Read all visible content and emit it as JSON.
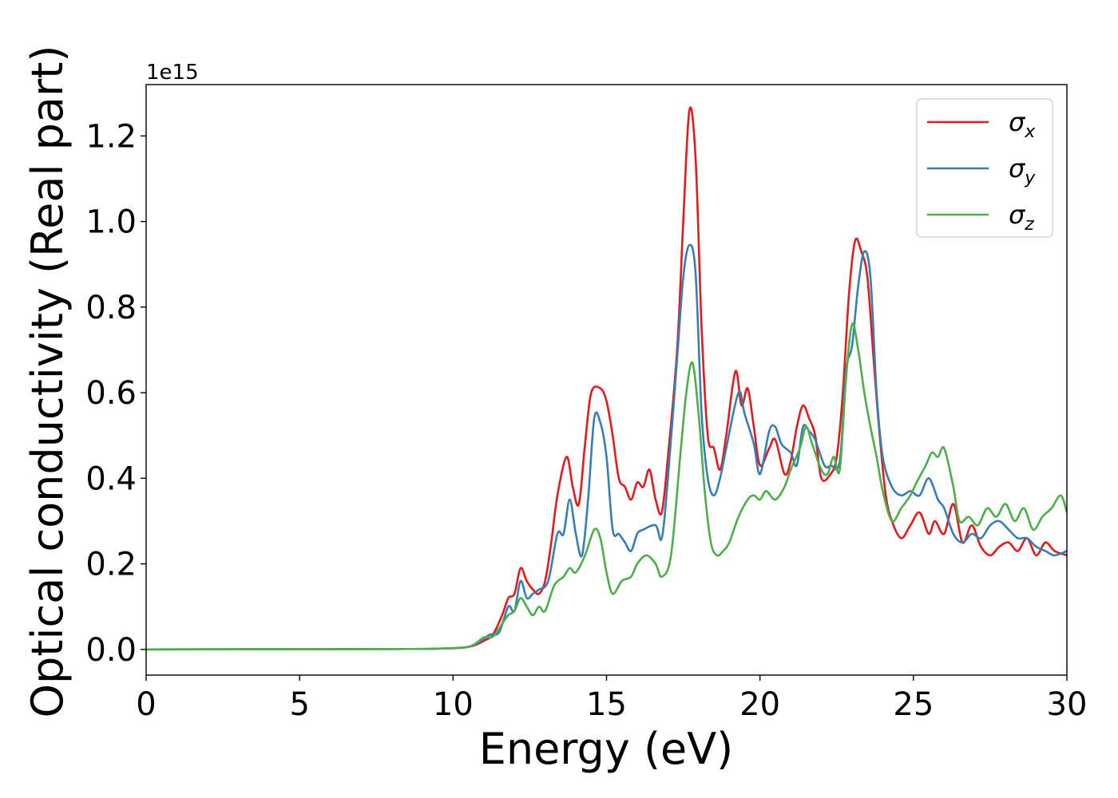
{
  "chart_data": {
    "type": "line",
    "title": "",
    "xlabel": "Energy (eV)",
    "ylabel": "Optical conductivity (Real part)",
    "y_offset_label": "1e15",
    "xlim": [
      0,
      30
    ],
    "ylim": [
      -0.06,
      1.32
    ],
    "x_ticks": [
      0,
      5,
      10,
      15,
      20,
      25,
      30
    ],
    "y_ticks": [
      0.0,
      0.2,
      0.4,
      0.6,
      0.8,
      1.0,
      1.2
    ],
    "y_tick_labels": [
      "0.0",
      "0.2",
      "0.4",
      "0.6",
      "0.8",
      "1.0",
      "1.2"
    ],
    "grid": false,
    "legend_position": "top-right",
    "series": [
      {
        "name": "σx",
        "symbol": "σ",
        "subscript": "x",
        "color": "#e41a1c",
        "points": [
          [
            0,
            0
          ],
          [
            8,
            0.001
          ],
          [
            9.5,
            0.002
          ],
          [
            10.5,
            0.006
          ],
          [
            11,
            0.02
          ],
          [
            11.3,
            0.035
          ],
          [
            11.6,
            0.08
          ],
          [
            11.8,
            0.12
          ],
          [
            12.0,
            0.13
          ],
          [
            12.2,
            0.19
          ],
          [
            12.4,
            0.16
          ],
          [
            12.6,
            0.14
          ],
          [
            12.8,
            0.13
          ],
          [
            13.0,
            0.16
          ],
          [
            13.2,
            0.25
          ],
          [
            13.4,
            0.36
          ],
          [
            13.7,
            0.45
          ],
          [
            13.9,
            0.38
          ],
          [
            14.1,
            0.34
          ],
          [
            14.3,
            0.48
          ],
          [
            14.5,
            0.6
          ],
          [
            14.8,
            0.61
          ],
          [
            15.0,
            0.58
          ],
          [
            15.2,
            0.5
          ],
          [
            15.4,
            0.4
          ],
          [
            15.6,
            0.38
          ],
          [
            15.8,
            0.35
          ],
          [
            16.0,
            0.39
          ],
          [
            16.2,
            0.38
          ],
          [
            16.4,
            0.42
          ],
          [
            16.6,
            0.35
          ],
          [
            16.8,
            0.32
          ],
          [
            17.0,
            0.45
          ],
          [
            17.3,
            0.7
          ],
          [
            17.5,
            1.0
          ],
          [
            17.7,
            1.26
          ],
          [
            17.9,
            1.15
          ],
          [
            18.1,
            0.75
          ],
          [
            18.3,
            0.5
          ],
          [
            18.5,
            0.47
          ],
          [
            18.7,
            0.42
          ],
          [
            18.9,
            0.5
          ],
          [
            19.2,
            0.65
          ],
          [
            19.4,
            0.57
          ],
          [
            19.6,
            0.61
          ],
          [
            19.8,
            0.52
          ],
          [
            20.0,
            0.43
          ],
          [
            20.3,
            0.47
          ],
          [
            20.5,
            0.49
          ],
          [
            20.8,
            0.41
          ],
          [
            21.0,
            0.44
          ],
          [
            21.2,
            0.52
          ],
          [
            21.4,
            0.57
          ],
          [
            21.6,
            0.54
          ],
          [
            21.8,
            0.5
          ],
          [
            22.0,
            0.4
          ],
          [
            22.3,
            0.41
          ],
          [
            22.5,
            0.45
          ],
          [
            22.7,
            0.6
          ],
          [
            22.9,
            0.83
          ],
          [
            23.1,
            0.955
          ],
          [
            23.3,
            0.93
          ],
          [
            23.5,
            0.87
          ],
          [
            23.7,
            0.68
          ],
          [
            23.9,
            0.5
          ],
          [
            24.1,
            0.36
          ],
          [
            24.3,
            0.3
          ],
          [
            24.6,
            0.26
          ],
          [
            24.9,
            0.29
          ],
          [
            25.2,
            0.32
          ],
          [
            25.5,
            0.27
          ],
          [
            25.7,
            0.3
          ],
          [
            26.0,
            0.27
          ],
          [
            26.3,
            0.34
          ],
          [
            26.6,
            0.25
          ],
          [
            26.9,
            0.29
          ],
          [
            27.2,
            0.24
          ],
          [
            27.5,
            0.22
          ],
          [
            27.8,
            0.24
          ],
          [
            28.1,
            0.25
          ],
          [
            28.4,
            0.23
          ],
          [
            28.7,
            0.26
          ],
          [
            29.0,
            0.22
          ],
          [
            29.3,
            0.25
          ],
          [
            29.6,
            0.23
          ],
          [
            30,
            0.22
          ]
        ]
      },
      {
        "name": "σy",
        "symbol": "σ",
        "subscript": "y",
        "color": "#377eb8",
        "points": [
          [
            0,
            0
          ],
          [
            8,
            0.001
          ],
          [
            9.5,
            0.002
          ],
          [
            10.5,
            0.006
          ],
          [
            11,
            0.025
          ],
          [
            11.2,
            0.035
          ],
          [
            11.5,
            0.04
          ],
          [
            11.8,
            0.1
          ],
          [
            12.0,
            0.09
          ],
          [
            12.2,
            0.16
          ],
          [
            12.4,
            0.12
          ],
          [
            12.6,
            0.13
          ],
          [
            12.8,
            0.14
          ],
          [
            13.1,
            0.16
          ],
          [
            13.4,
            0.27
          ],
          [
            13.6,
            0.27
          ],
          [
            13.8,
            0.35
          ],
          [
            14.0,
            0.27
          ],
          [
            14.2,
            0.22
          ],
          [
            14.4,
            0.35
          ],
          [
            14.6,
            0.54
          ],
          [
            14.8,
            0.53
          ],
          [
            15.0,
            0.45
          ],
          [
            15.2,
            0.28
          ],
          [
            15.4,
            0.27
          ],
          [
            15.6,
            0.25
          ],
          [
            15.8,
            0.23
          ],
          [
            16.0,
            0.27
          ],
          [
            16.2,
            0.28
          ],
          [
            16.6,
            0.29
          ],
          [
            16.8,
            0.26
          ],
          [
            17.0,
            0.4
          ],
          [
            17.3,
            0.68
          ],
          [
            17.5,
            0.87
          ],
          [
            17.7,
            0.945
          ],
          [
            17.9,
            0.88
          ],
          [
            18.1,
            0.55
          ],
          [
            18.3,
            0.4
          ],
          [
            18.5,
            0.36
          ],
          [
            18.7,
            0.4
          ],
          [
            18.9,
            0.47
          ],
          [
            19.3,
            0.6
          ],
          [
            19.5,
            0.55
          ],
          [
            19.8,
            0.48
          ],
          [
            20.0,
            0.41
          ],
          [
            20.3,
            0.51
          ],
          [
            20.5,
            0.52
          ],
          [
            20.7,
            0.48
          ],
          [
            21.0,
            0.46
          ],
          [
            21.2,
            0.43
          ],
          [
            21.4,
            0.52
          ],
          [
            21.6,
            0.51
          ],
          [
            21.8,
            0.49
          ],
          [
            22.1,
            0.43
          ],
          [
            22.3,
            0.43
          ],
          [
            22.6,
            0.44
          ],
          [
            22.8,
            0.65
          ],
          [
            23.0,
            0.71
          ],
          [
            23.2,
            0.85
          ],
          [
            23.4,
            0.93
          ],
          [
            23.6,
            0.87
          ],
          [
            23.8,
            0.6
          ],
          [
            24.0,
            0.45
          ],
          [
            24.3,
            0.38
          ],
          [
            24.6,
            0.36
          ],
          [
            24.9,
            0.37
          ],
          [
            25.2,
            0.36
          ],
          [
            25.5,
            0.4
          ],
          [
            25.8,
            0.35
          ],
          [
            26.0,
            0.33
          ],
          [
            26.3,
            0.27
          ],
          [
            26.6,
            0.25
          ],
          [
            26.9,
            0.27
          ],
          [
            27.2,
            0.26
          ],
          [
            27.5,
            0.29
          ],
          [
            27.8,
            0.3
          ],
          [
            28.1,
            0.28
          ],
          [
            28.4,
            0.26
          ],
          [
            28.7,
            0.26
          ],
          [
            29.0,
            0.24
          ],
          [
            29.3,
            0.23
          ],
          [
            29.6,
            0.22
          ],
          [
            30,
            0.23
          ]
        ]
      },
      {
        "name": "σz",
        "symbol": "σ",
        "subscript": "z",
        "color": "#4daf4a",
        "points": [
          [
            0,
            0
          ],
          [
            8,
            0.001
          ],
          [
            9.5,
            0.002
          ],
          [
            10.5,
            0.006
          ],
          [
            11,
            0.028
          ],
          [
            11.3,
            0.03
          ],
          [
            11.6,
            0.06
          ],
          [
            11.8,
            0.08
          ],
          [
            12.0,
            0.09
          ],
          [
            12.2,
            0.12
          ],
          [
            12.4,
            0.1
          ],
          [
            12.6,
            0.08
          ],
          [
            12.8,
            0.1
          ],
          [
            13.0,
            0.09
          ],
          [
            13.3,
            0.15
          ],
          [
            13.6,
            0.17
          ],
          [
            13.8,
            0.19
          ],
          [
            14.0,
            0.18
          ],
          [
            14.3,
            0.22
          ],
          [
            14.6,
            0.28
          ],
          [
            14.8,
            0.26
          ],
          [
            15.0,
            0.18
          ],
          [
            15.2,
            0.13
          ],
          [
            15.5,
            0.16
          ],
          [
            15.8,
            0.17
          ],
          [
            16.0,
            0.2
          ],
          [
            16.3,
            0.22
          ],
          [
            16.6,
            0.2
          ],
          [
            16.8,
            0.17
          ],
          [
            17.1,
            0.22
          ],
          [
            17.4,
            0.45
          ],
          [
            17.6,
            0.6
          ],
          [
            17.8,
            0.67
          ],
          [
            18.0,
            0.55
          ],
          [
            18.2,
            0.37
          ],
          [
            18.4,
            0.25
          ],
          [
            18.6,
            0.22
          ],
          [
            18.8,
            0.23
          ],
          [
            19.0,
            0.25
          ],
          [
            19.3,
            0.31
          ],
          [
            19.6,
            0.35
          ],
          [
            19.8,
            0.36
          ],
          [
            20.0,
            0.35
          ],
          [
            20.2,
            0.37
          ],
          [
            20.5,
            0.35
          ],
          [
            20.8,
            0.38
          ],
          [
            21.0,
            0.42
          ],
          [
            21.3,
            0.47
          ],
          [
            21.5,
            0.52
          ],
          [
            21.7,
            0.48
          ],
          [
            22.0,
            0.42
          ],
          [
            22.2,
            0.41
          ],
          [
            22.4,
            0.45
          ],
          [
            22.6,
            0.42
          ],
          [
            22.8,
            0.63
          ],
          [
            23.0,
            0.76
          ],
          [
            23.2,
            0.7
          ],
          [
            23.4,
            0.6
          ],
          [
            23.6,
            0.52
          ],
          [
            23.8,
            0.45
          ],
          [
            24.0,
            0.37
          ],
          [
            24.3,
            0.3
          ],
          [
            24.6,
            0.33
          ],
          [
            24.9,
            0.36
          ],
          [
            25.1,
            0.39
          ],
          [
            25.4,
            0.43
          ],
          [
            25.6,
            0.46
          ],
          [
            25.8,
            0.45
          ],
          [
            26.0,
            0.47
          ],
          [
            26.3,
            0.38
          ],
          [
            26.5,
            0.3
          ],
          [
            26.8,
            0.31
          ],
          [
            27.1,
            0.29
          ],
          [
            27.4,
            0.33
          ],
          [
            27.7,
            0.31
          ],
          [
            28.0,
            0.34
          ],
          [
            28.3,
            0.3
          ],
          [
            28.6,
            0.33
          ],
          [
            28.9,
            0.28
          ],
          [
            29.2,
            0.31
          ],
          [
            29.5,
            0.33
          ],
          [
            29.8,
            0.36
          ],
          [
            30,
            0.32
          ]
        ]
      }
    ]
  }
}
